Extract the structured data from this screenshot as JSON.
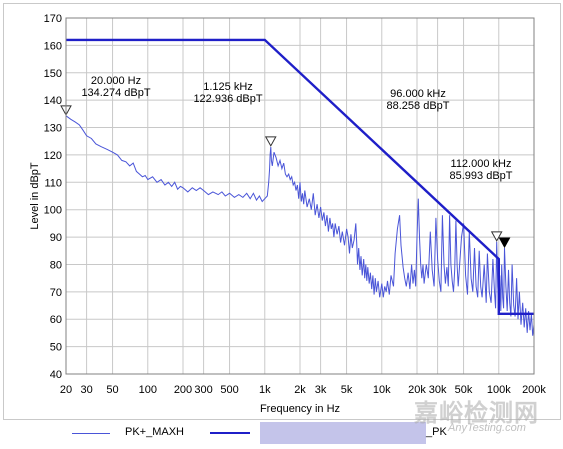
{
  "chart_data": {
    "type": "line",
    "xscale": "log",
    "xlim": [
      20,
      200000
    ],
    "ylim": [
      40,
      170
    ],
    "xlabel": "Frequency in Hz",
    "ylabel": "Level in dBpT",
    "grid": true,
    "yticks": [
      40,
      50,
      60,
      70,
      80,
      90,
      100,
      110,
      120,
      130,
      140,
      150,
      160,
      170
    ],
    "xticks": [
      {
        "v": 20,
        "label": "20"
      },
      {
        "v": 30,
        "label": "30"
      },
      {
        "v": 50,
        "label": "50"
      },
      {
        "v": 100,
        "label": "100"
      },
      {
        "v": 200,
        "label": "200"
      },
      {
        "v": 300,
        "label": "300"
      },
      {
        "v": 500,
        "label": "500"
      },
      {
        "v": 1000,
        "label": "1k"
      },
      {
        "v": 2000,
        "label": "2k"
      },
      {
        "v": 3000,
        "label": "3k"
      },
      {
        "v": 5000,
        "label": "5k"
      },
      {
        "v": 10000,
        "label": "10k"
      },
      {
        "v": 20000,
        "label": "20k"
      },
      {
        "v": 30000,
        "label": "30k"
      },
      {
        "v": 50000,
        "label": "50k"
      },
      {
        "v": 100000,
        "label": "100k"
      },
      {
        "v": 200000,
        "label": "200k"
      }
    ],
    "series": [
      {
        "name": "PK+_MAXH",
        "color": "#4a55d8",
        "points": [
          [
            20,
            134.3
          ],
          [
            22,
            133
          ],
          [
            24,
            132
          ],
          [
            26,
            131
          ],
          [
            28,
            129
          ],
          [
            30,
            127
          ],
          [
            33,
            126
          ],
          [
            36,
            124
          ],
          [
            40,
            123
          ],
          [
            45,
            122
          ],
          [
            50,
            121
          ],
          [
            55,
            120
          ],
          [
            60,
            118
          ],
          [
            65,
            117.5
          ],
          [
            70,
            116
          ],
          [
            75,
            117
          ],
          [
            80,
            114
          ],
          [
            85,
            113
          ],
          [
            90,
            112
          ],
          [
            95,
            112.5
          ],
          [
            100,
            111
          ],
          [
            110,
            112
          ],
          [
            120,
            110
          ],
          [
            130,
            111
          ],
          [
            140,
            109
          ],
          [
            150,
            110
          ],
          [
            160,
            108.5
          ],
          [
            170,
            110
          ],
          [
            180,
            107.5
          ],
          [
            190,
            108.5
          ],
          [
            200,
            108
          ],
          [
            220,
            106.5
          ],
          [
            240,
            108
          ],
          [
            260,
            107
          ],
          [
            280,
            108
          ],
          [
            300,
            107
          ],
          [
            330,
            105.5
          ],
          [
            360,
            106.5
          ],
          [
            400,
            105.5
          ],
          [
            430,
            106.5
          ],
          [
            460,
            105
          ],
          [
            500,
            106
          ],
          [
            550,
            104.5
          ],
          [
            600,
            105.5
          ],
          [
            650,
            104.5
          ],
          [
            700,
            106
          ],
          [
            750,
            104
          ],
          [
            800,
            106
          ],
          [
            850,
            103.5
          ],
          [
            900,
            105
          ],
          [
            950,
            103
          ],
          [
            1000,
            104
          ],
          [
            1050,
            105
          ],
          [
            1080,
            110
          ],
          [
            1100,
            115
          ],
          [
            1110,
            120
          ],
          [
            1125,
            122.9
          ],
          [
            1140,
            118
          ],
          [
            1160,
            116
          ],
          [
            1200,
            121
          ],
          [
            1250,
            119
          ],
          [
            1300,
            116
          ],
          [
            1350,
            118
          ],
          [
            1400,
            115
          ],
          [
            1450,
            117
          ],
          [
            1500,
            113
          ],
          [
            1550,
            112
          ],
          [
            1600,
            113
          ],
          [
            1650,
            111
          ],
          [
            1700,
            112
          ],
          [
            1750,
            109
          ],
          [
            1800,
            110
          ],
          [
            1850,
            107
          ],
          [
            1900,
            109
          ],
          [
            1950,
            104
          ],
          [
            2000,
            110
          ],
          [
            2050,
            103
          ],
          [
            2100,
            106
          ],
          [
            2150,
            102
          ],
          [
            2200,
            107
          ],
          [
            2300,
            101
          ],
          [
            2400,
            104
          ],
          [
            2500,
            100
          ],
          [
            2600,
            106
          ],
          [
            2700,
            98
          ],
          [
            2800,
            102
          ],
          [
            2900,
            97
          ],
          [
            3000,
            101
          ],
          [
            3100,
            96
          ],
          [
            3200,
            99
          ],
          [
            3300,
            94
          ],
          [
            3400,
            98
          ],
          [
            3500,
            92
          ],
          [
            3600,
            97
          ],
          [
            3700,
            93
          ],
          [
            3800,
            95
          ],
          [
            3900,
            90
          ],
          [
            4000,
            95
          ],
          [
            4150,
            91
          ],
          [
            4300,
            94
          ],
          [
            4450,
            88
          ],
          [
            4600,
            92
          ],
          [
            4800,
            87
          ],
          [
            5000,
            93
          ],
          [
            5150,
            90
          ],
          [
            5300,
            84
          ],
          [
            5450,
            91
          ],
          [
            5600,
            86
          ],
          [
            5800,
            89
          ],
          [
            6000,
            95
          ],
          [
            6100,
            88
          ],
          [
            6200,
            80
          ],
          [
            6350,
            86
          ],
          [
            6500,
            78
          ],
          [
            6650,
            83
          ],
          [
            6800,
            76
          ],
          [
            7000,
            82
          ],
          [
            7150,
            75
          ],
          [
            7300,
            80
          ],
          [
            7450,
            74
          ],
          [
            7600,
            79
          ],
          [
            7800,
            73
          ],
          [
            8000,
            77
          ],
          [
            8200,
            71
          ],
          [
            8400,
            76
          ],
          [
            8600,
            69
          ],
          [
            8800,
            75
          ],
          [
            9000,
            70
          ],
          [
            9300,
            74
          ],
          [
            9600,
            68
          ],
          [
            10000,
            73
          ],
          [
            10300,
            68
          ],
          [
            10600,
            72
          ],
          [
            10900,
            70
          ],
          [
            11200,
            74
          ],
          [
            11600,
            69
          ],
          [
            12000,
            76
          ],
          [
            12600,
            72
          ],
          [
            13000,
            84
          ],
          [
            13600,
            93
          ],
          [
            14200,
            98
          ],
          [
            14600,
            87
          ],
          [
            15200,
            79
          ],
          [
            15700,
            75
          ],
          [
            16200,
            72
          ],
          [
            16800,
            77
          ],
          [
            17400,
            71
          ],
          [
            18000,
            80
          ],
          [
            18500,
            73
          ],
          [
            19000,
            78
          ],
          [
            19500,
            72
          ],
          [
            20000,
            90
          ],
          [
            20500,
            104
          ],
          [
            21000,
            90
          ],
          [
            21500,
            80
          ],
          [
            22000,
            75
          ],
          [
            22500,
            80
          ],
          [
            23000,
            73
          ],
          [
            24000,
            80
          ],
          [
            25000,
            75
          ],
          [
            26000,
            92
          ],
          [
            27000,
            78
          ],
          [
            28000,
            72
          ],
          [
            29000,
            97
          ],
          [
            30000,
            82
          ],
          [
            31000,
            74
          ],
          [
            32000,
            70
          ],
          [
            33000,
            98
          ],
          [
            34000,
            80
          ],
          [
            35000,
            73
          ],
          [
            36000,
            79
          ],
          [
            37000,
            72
          ],
          [
            38000,
            98
          ],
          [
            39000,
            80
          ],
          [
            40000,
            74
          ],
          [
            41000,
            70
          ],
          [
            42000,
            78
          ],
          [
            43000,
            96
          ],
          [
            44000,
            80
          ],
          [
            45000,
            72
          ],
          [
            46000,
            78
          ],
          [
            48000,
            90
          ],
          [
            50000,
            95
          ],
          [
            52000,
            76
          ],
          [
            54000,
            69
          ],
          [
            56000,
            92
          ],
          [
            58000,
            75
          ],
          [
            60000,
            70
          ],
          [
            62000,
            86
          ],
          [
            64000,
            72
          ],
          [
            66000,
            68
          ],
          [
            68000,
            85
          ],
          [
            70000,
            72
          ],
          [
            72000,
            68
          ],
          [
            75000,
            80
          ],
          [
            78000,
            66
          ],
          [
            80000,
            84
          ],
          [
            83000,
            70
          ],
          [
            86000,
            66
          ],
          [
            89000,
            82
          ],
          [
            92000,
            70
          ],
          [
            94000,
            64
          ],
          [
            96000,
            88.3
          ],
          [
            98000,
            72
          ],
          [
            100000,
            66
          ],
          [
            102000,
            76
          ],
          [
            104000,
            63
          ],
          [
            106000,
            80
          ],
          [
            108000,
            68
          ],
          [
            110000,
            64
          ],
          [
            112000,
            86
          ],
          [
            115000,
            72
          ],
          [
            118000,
            63
          ],
          [
            121000,
            78
          ],
          [
            124000,
            66
          ],
          [
            127000,
            61
          ],
          [
            130000,
            80
          ],
          [
            134000,
            65
          ],
          [
            138000,
            61
          ],
          [
            142000,
            75
          ],
          [
            146000,
            60
          ],
          [
            150000,
            70
          ],
          [
            155000,
            58
          ],
          [
            160000,
            66
          ],
          [
            165000,
            57
          ],
          [
            170000,
            64
          ],
          [
            175000,
            55
          ],
          [
            180000,
            63
          ],
          [
            185000,
            56
          ],
          [
            190000,
            62
          ],
          [
            195000,
            54
          ],
          [
            200000,
            58
          ]
        ]
      },
      {
        "name": "PK",
        "color": "#1f1fc8",
        "points": [
          [
            20,
            162
          ],
          [
            1000,
            162
          ],
          [
            100000,
            82
          ],
          [
            100000,
            62
          ],
          [
            200000,
            62
          ]
        ]
      }
    ],
    "markers": [
      {
        "x": 20,
        "y": 134.274,
        "style": "hollow-triangle"
      },
      {
        "x": 1125,
        "y": 122.936,
        "style": "hollow-triangle"
      },
      {
        "x": 96000,
        "y": 88.258,
        "style": "hollow-triangle"
      },
      {
        "x": 112000,
        "y": 85.993,
        "style": "filled-triangle"
      }
    ],
    "annotations": [
      {
        "freq": "20.000 Hz",
        "level": "134.274 dBpT"
      },
      {
        "freq": "1.125 kHz",
        "level": "122.936 dBpT"
      },
      {
        "freq": "96.000 kHz",
        "level": "88.258 dBpT"
      },
      {
        "freq": "112.000 kHz",
        "level": "85.993 dBpT"
      }
    ]
  },
  "legend": {
    "item1": {
      "label": "PK+_MAXH",
      "color": "#4a55d8"
    },
    "item2": {
      "label": "_PK",
      "color": "#1f1fc8"
    }
  },
  "watermark": {
    "text": "嘉峪检测网",
    "subtext": "AnyTesting.com"
  }
}
